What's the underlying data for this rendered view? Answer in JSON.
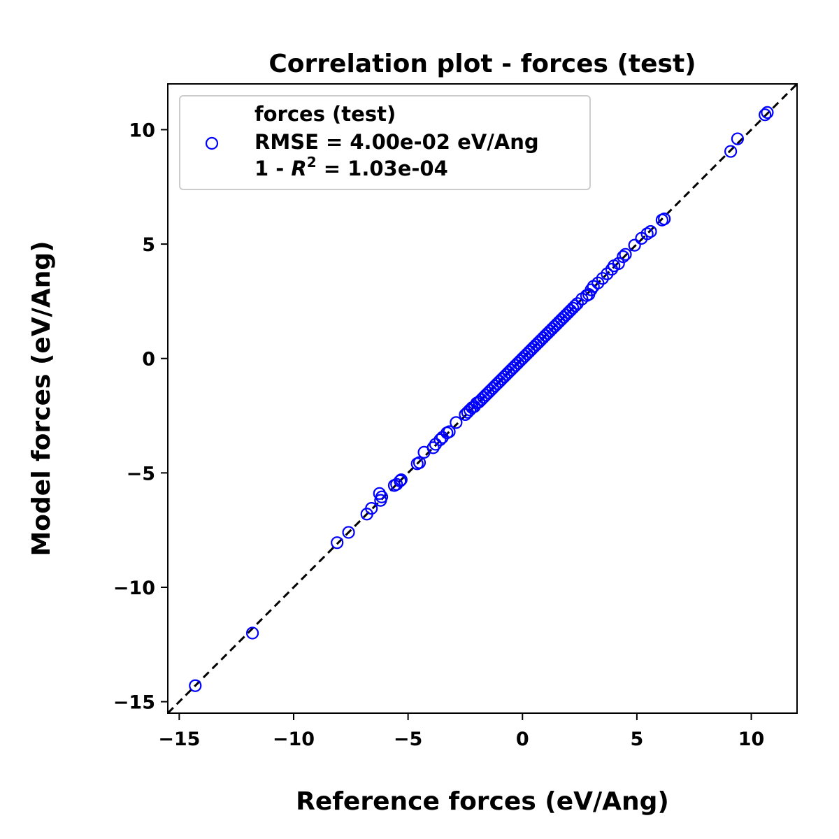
{
  "chart_data": {
    "type": "scatter",
    "title": "Correlation plot - forces (test)",
    "xlabel": "Reference forces (eV/Ang)",
    "ylabel": "Model forces (eV/Ang)",
    "xlim": [
      -15.5,
      12.0
    ],
    "ylim": [
      -15.5,
      12.0
    ],
    "xticks": [
      -15,
      -10,
      -5,
      0,
      5,
      10
    ],
    "yticks": [
      -15,
      -10,
      -5,
      0,
      5,
      10
    ],
    "xtick_labels": [
      "−15",
      "−10",
      "−5",
      "0",
      "5",
      "10"
    ],
    "ytick_labels": [
      "−15",
      "−10",
      "−5",
      "0",
      "5",
      "10"
    ],
    "grid": false,
    "legend_position": "top-left",
    "legend": {
      "title": "forces (test)",
      "rmse_text": "RMSE = 4.00e-02 eV/Ang",
      "r2_prefix": "1 - ",
      "r2_symbol": "R",
      "r2_exponent": "2",
      "r2_suffix": " = 1.03e-04"
    },
    "reference_line": {
      "style": "dashed",
      "color": "#000000",
      "from": [
        -15.5,
        -15.5
      ],
      "to": [
        12.0,
        12.0
      ]
    },
    "series": [
      {
        "name": "forces (test)",
        "marker": "open-circle",
        "color": "#0000ff",
        "points": [
          [
            -14.3,
            -14.3
          ],
          [
            -11.8,
            -12.0
          ],
          [
            -8.1,
            -8.05
          ],
          [
            -7.6,
            -7.6
          ],
          [
            -6.8,
            -6.8
          ],
          [
            -6.6,
            -6.55
          ],
          [
            -6.25,
            -5.9
          ],
          [
            -6.2,
            -6.2
          ],
          [
            -6.15,
            -6.05
          ],
          [
            -5.6,
            -5.55
          ],
          [
            -5.5,
            -5.5
          ],
          [
            -5.35,
            -5.35
          ],
          [
            -5.3,
            -5.3
          ],
          [
            -4.6,
            -4.6
          ],
          [
            -4.5,
            -4.55
          ],
          [
            -4.3,
            -4.1
          ],
          [
            -3.9,
            -3.9
          ],
          [
            -3.8,
            -3.75
          ],
          [
            -3.6,
            -3.55
          ],
          [
            -3.5,
            -3.45
          ],
          [
            -3.3,
            -3.25
          ],
          [
            -3.2,
            -3.2
          ],
          [
            -2.9,
            -2.8
          ],
          [
            -2.5,
            -2.45
          ],
          [
            -2.4,
            -2.35
          ],
          [
            -2.3,
            -2.25
          ],
          [
            -2.2,
            -2.15
          ],
          [
            -2.1,
            -2.1
          ],
          [
            -2.0,
            -1.95
          ],
          [
            -1.9,
            -1.9
          ],
          [
            -1.8,
            -1.8
          ],
          [
            -1.7,
            -1.7
          ],
          [
            -1.6,
            -1.6
          ],
          [
            -1.5,
            -1.5
          ],
          [
            -1.4,
            -1.4
          ],
          [
            -1.3,
            -1.3
          ],
          [
            -1.2,
            -1.2
          ],
          [
            -1.1,
            -1.1
          ],
          [
            -1.0,
            -1.0
          ],
          [
            -0.9,
            -0.9
          ],
          [
            -0.8,
            -0.8
          ],
          [
            -0.7,
            -0.7
          ],
          [
            -0.6,
            -0.6
          ],
          [
            -0.5,
            -0.5
          ],
          [
            -0.4,
            -0.4
          ],
          [
            -0.3,
            -0.3
          ],
          [
            -0.2,
            -0.2
          ],
          [
            -0.1,
            -0.1
          ],
          [
            0.0,
            0.0
          ],
          [
            0.1,
            0.1
          ],
          [
            0.2,
            0.2
          ],
          [
            0.3,
            0.3
          ],
          [
            0.4,
            0.4
          ],
          [
            0.5,
            0.5
          ],
          [
            0.6,
            0.6
          ],
          [
            0.7,
            0.7
          ],
          [
            0.8,
            0.8
          ],
          [
            0.9,
            0.9
          ],
          [
            1.0,
            1.0
          ],
          [
            1.1,
            1.1
          ],
          [
            1.2,
            1.2
          ],
          [
            1.3,
            1.3
          ],
          [
            1.4,
            1.4
          ],
          [
            1.5,
            1.5
          ],
          [
            1.6,
            1.6
          ],
          [
            1.7,
            1.7
          ],
          [
            1.8,
            1.8
          ],
          [
            1.9,
            1.9
          ],
          [
            2.0,
            2.0
          ],
          [
            2.1,
            2.1
          ],
          [
            2.2,
            2.2
          ],
          [
            2.3,
            2.3
          ],
          [
            2.4,
            2.4
          ],
          [
            2.6,
            2.6
          ],
          [
            2.8,
            2.75
          ],
          [
            2.9,
            2.8
          ],
          [
            3.0,
            3.0
          ],
          [
            3.1,
            3.15
          ],
          [
            3.3,
            3.3
          ],
          [
            3.5,
            3.5
          ],
          [
            3.7,
            3.7
          ],
          [
            3.9,
            3.9
          ],
          [
            4.0,
            4.05
          ],
          [
            4.2,
            4.15
          ],
          [
            4.4,
            4.45
          ],
          [
            4.5,
            4.55
          ],
          [
            4.9,
            4.95
          ],
          [
            5.2,
            5.25
          ],
          [
            5.45,
            5.45
          ],
          [
            5.6,
            5.55
          ],
          [
            6.1,
            6.05
          ],
          [
            6.2,
            6.1
          ],
          [
            9.1,
            9.05
          ],
          [
            9.4,
            9.6
          ],
          [
            10.6,
            10.65
          ],
          [
            10.7,
            10.75
          ]
        ]
      }
    ]
  }
}
